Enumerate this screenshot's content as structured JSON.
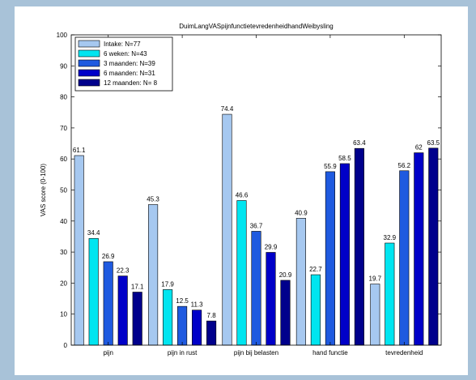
{
  "chart_data": {
    "type": "bar",
    "title": "DuimLangVASpijnfunctietevredenheidhandWeibysling",
    "xlabel": "",
    "ylabel": "VAS score (0-100)",
    "ylim": [
      0,
      100
    ],
    "yticks": [
      0,
      10,
      20,
      30,
      40,
      50,
      60,
      70,
      80,
      90,
      100
    ],
    "grid": false,
    "legend_position": "top-left",
    "categories": [
      "pijn",
      "pijn in rust",
      "pijn bij belasten",
      "hand functie",
      "tevredenheid"
    ],
    "series": [
      {
        "name": "Intake: N=77",
        "color": "#a6c8f0",
        "values": [
          61.1,
          45.3,
          74.4,
          40.9,
          19.7
        ]
      },
      {
        "name": "6 weken: N=43",
        "color": "#00e5f0",
        "values": [
          34.4,
          17.9,
          46.6,
          22.7,
          32.9
        ]
      },
      {
        "name": "3 maanden: N=39",
        "color": "#1f5ae0",
        "values": [
          26.9,
          12.5,
          36.7,
          55.9,
          56.2
        ]
      },
      {
        "name": "6 maanden: N=31",
        "color": "#0000c8",
        "values": [
          22.3,
          11.3,
          29.9,
          58.5,
          62
        ]
      },
      {
        "name": "12 maanden: N= 8",
        "color": "#00008c",
        "values": [
          17.1,
          7.8,
          20.9,
          63.4,
          63.5
        ]
      }
    ],
    "data_labels": [
      [
        "61.1",
        "45.3",
        "74.4",
        "40.9",
        "19.7"
      ],
      [
        "34.4",
        "17.9",
        "46.6",
        "22.7",
        "32.9"
      ],
      [
        "26.9",
        "12.5",
        "36.7",
        "55.9",
        "56.2"
      ],
      [
        "22.3",
        "11.3",
        "29.9",
        "58.5",
        "62"
      ],
      [
        "17.1",
        "7.8",
        "20.9",
        "63.4",
        "63.5"
      ]
    ]
  }
}
